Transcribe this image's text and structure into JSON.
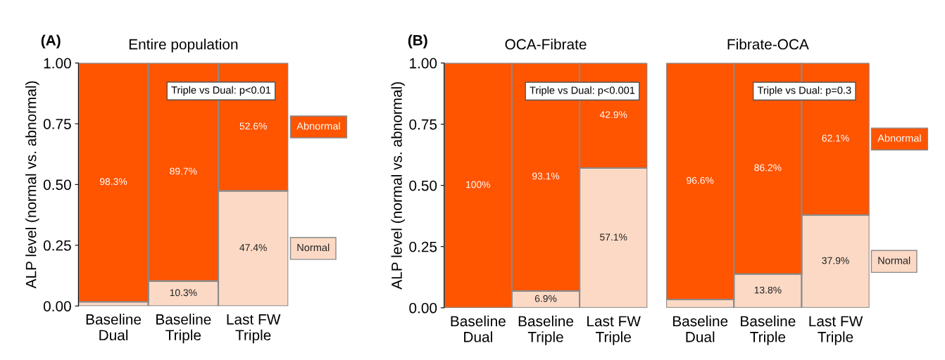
{
  "chart_data": [
    {
      "type": "bar",
      "stacked": true,
      "title": "Entire population",
      "ylabel": "ALP level (normal vs. abnormal)",
      "annotations": [
        "(A)",
        "Triple vs Dual: p<0.01"
      ],
      "categories": [
        "Baseline\nDual",
        "Baseline\nTriple",
        "Last FW\nTriple"
      ],
      "ylim": [
        0,
        1
      ],
      "yticks": [
        {
          "value": 0,
          "label": "0.00"
        },
        {
          "value": 0.25,
          "label": "0.25"
        },
        {
          "value": 0.5,
          "label": "0.50"
        },
        {
          "value": 0.75,
          "label": "0.75"
        },
        {
          "value": 1,
          "label": "1.00"
        }
      ],
      "grid": false,
      "legend": false,
      "series": [
        {
          "name": "Normal",
          "color": "#fcd9c5",
          "values": [
            0.017,
            0.103,
            0.474
          ],
          "value_labels": [
            null,
            "10.3%",
            "47.4%"
          ]
        },
        {
          "name": "Abnormal",
          "color": "#ff5400",
          "values": [
            0.983,
            0.897,
            0.526
          ],
          "value_labels": [
            "98.3%",
            "89.7%",
            "52.6%"
          ]
        }
      ]
    },
    {
      "type": "bar",
      "stacked": true,
      "title": "OCA-Fibrate",
      "ylabel": "ALP level (normal vs. abnormal)",
      "annotations": [
        "(B)",
        "Triple vs Dual: p<0.001"
      ],
      "categories": [
        "Baseline\nDual",
        "Baseline\nTriple",
        "Last FW\nTriple"
      ],
      "ylim": [
        0,
        1
      ],
      "yticks": [
        {
          "value": 0,
          "label": "0.00"
        },
        {
          "value": 0.25,
          "label": "0.25"
        },
        {
          "value": 0.5,
          "label": "0.50"
        },
        {
          "value": 0.75,
          "label": "0.75"
        },
        {
          "value": 1,
          "label": "1.00"
        }
      ],
      "grid": false,
      "legend": false,
      "series": [
        {
          "color": "#fcd9c5",
          "values": [
            0,
            0.069,
            0.571
          ],
          "value_labels": [
            null,
            "6.9%",
            "57.1%"
          ]
        },
        {
          "color": "#ff5400",
          "values": [
            1.0,
            0.931,
            0.429
          ],
          "value_labels": [
            "100%",
            "93.1%",
            "42.9%"
          ]
        }
      ]
    },
    {
      "type": "bar",
      "stacked": true,
      "title": "Fibrate-OCA",
      "annotations": [
        "Triple vs Dual: p=0.3"
      ],
      "categories": [
        "Baseline\nDual",
        "Baseline\nTriple",
        "Last FW\nTriple"
      ],
      "ylim": [
        0,
        1
      ],
      "tick_labels": "x",
      "grid": false,
      "legend": false,
      "series": [
        {
          "name": "Normal",
          "color": "#fcd9c5",
          "values": [
            0.034,
            0.138,
            0.379
          ],
          "value_labels": [
            null,
            "13.8%",
            "37.9%"
          ]
        },
        {
          "name": "Abnormal",
          "color": "#ff5400",
          "values": [
            0.966,
            0.862,
            0.621
          ],
          "value_labels": [
            "96.6%",
            "86.2%",
            "62.1%"
          ]
        }
      ]
    }
  ]
}
